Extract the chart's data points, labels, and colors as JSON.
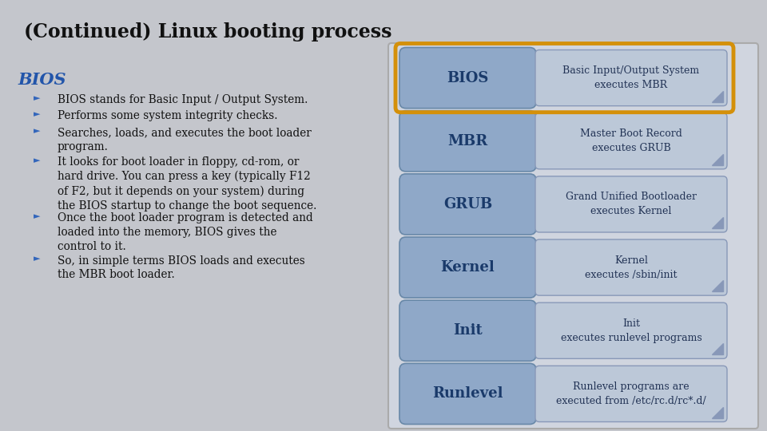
{
  "title": "(Continued) Linux booting process",
  "title_fontsize": 17,
  "title_color": "#111111",
  "section_heading": "BIOS",
  "section_heading_color": "#2255aa",
  "section_heading_fontsize": 15,
  "background_color": "#c4c6cc",
  "bullet_text": [
    "BIOS stands for Basic Input / Output System.",
    "Performs some system integrity checks.",
    "Searches, loads, and executes the boot loader\nprogram.",
    "It looks for boot loader in floppy, cd-rom, or\nhard drive. You can press a key (typically F12\nof F2, but it depends on your system) during\nthe BIOS startup to change the boot sequence.",
    "Once the boot loader program is detected and\nloaded into the memory, BIOS gives the\ncontrol to it.",
    "So, in simple terms BIOS loads and executes\nthe MBR boot loader."
  ],
  "bullet_fontsize": 9.8,
  "bullet_color": "#111111",
  "bullet_arrow_color": "#3366bb",
  "diagram_items": [
    {
      "label": "BIOS",
      "desc": "Basic Input/Output System\nexecutes MBR",
      "highlighted": true
    },
    {
      "label": "MBR",
      "desc": "Master Boot Record\nexecutes GRUB",
      "highlighted": false
    },
    {
      "label": "GRUB",
      "desc": "Grand Unified Bootloader\nexecutes Kernel",
      "highlighted": false
    },
    {
      "label": "Kernel",
      "desc": "Kernel\nexecutes /sbin/init",
      "highlighted": false
    },
    {
      "label": "Init",
      "desc": "Init\nexecutes runlevel programs",
      "highlighted": false
    },
    {
      "label": "Runlevel",
      "desc": "Runlevel programs are\nexecuted from /etc/rc.d/rc*.d/",
      "highlighted": false
    }
  ],
  "box_fill_color": "#8fa8c8",
  "box_edge_color": "#6888a8",
  "desc_fill_color": "#bcc8d8",
  "desc_edge_color": "#8898b8",
  "highlight_color": "#d4900a",
  "label_color": "#1a3a6a",
  "desc_text_color": "#223355",
  "panel_bg_color": "#d0d5df",
  "panel_edge_color": "#aaaaaa",
  "corner_color": "#8898b8"
}
